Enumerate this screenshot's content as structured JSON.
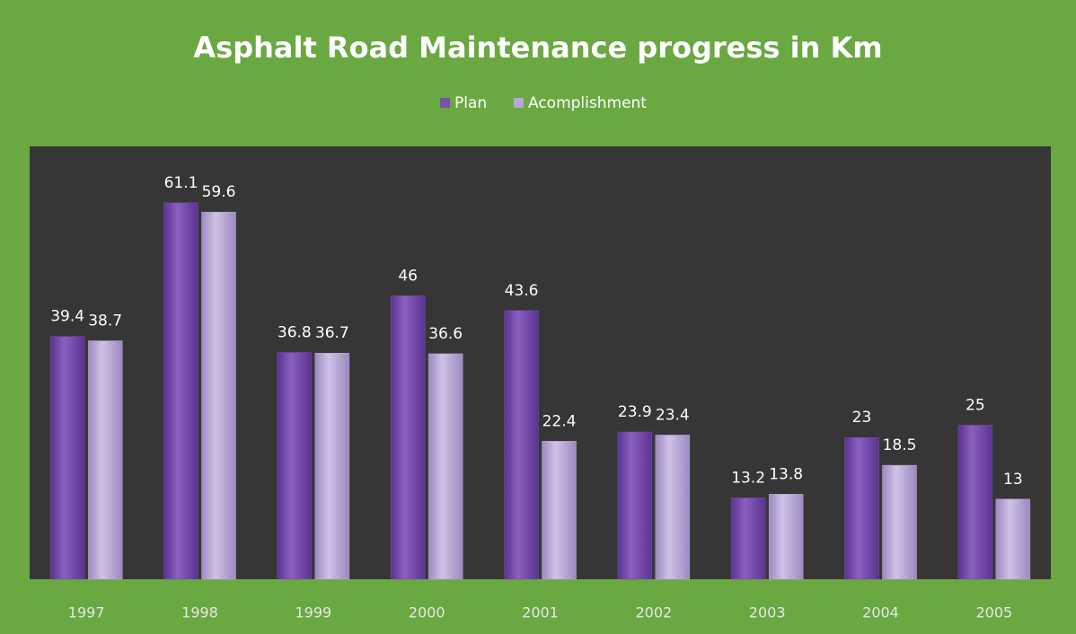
{
  "chart_data": {
    "type": "bar",
    "title": "Asphalt Road Maintenance progress in  Km",
    "categories": [
      "1997",
      "1998",
      "1999",
      "2000",
      "2001",
      "2002",
      "2003",
      "2004",
      "2005"
    ],
    "series": [
      {
        "name": "Plan",
        "color": "#7a4fae",
        "values": [
          39.4,
          61.1,
          36.8,
          46,
          43.6,
          23.9,
          13.2,
          23,
          25
        ]
      },
      {
        "name": "Acomplishment",
        "color": "#b9a7d6",
        "values": [
          38.7,
          59.6,
          36.7,
          36.6,
          22.4,
          23.4,
          13.8,
          18.5,
          13
        ]
      }
    ],
    "legend": "top"
  }
}
